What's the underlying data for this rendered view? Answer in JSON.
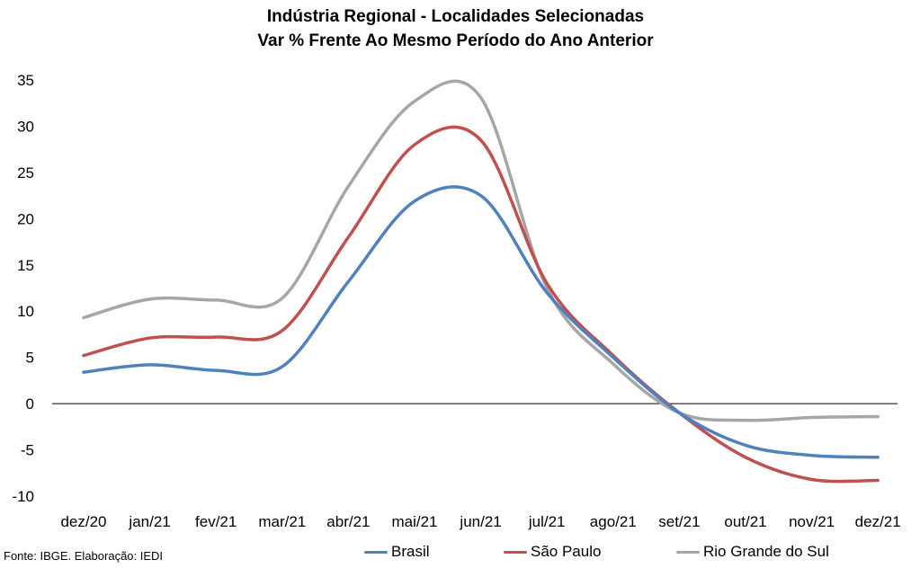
{
  "chart_data": {
    "type": "line",
    "title": "Indústria Regional - Localidades Selecionadas",
    "subtitle": "Var % Frente Ao Mesmo Período do Ano Anterior",
    "categories": [
      "dez/20",
      "jan/21",
      "fev/21",
      "mar/21",
      "abr/21",
      "mai/21",
      "jun/21",
      "jul/21",
      "ago/21",
      "set/21",
      "out/21",
      "nov/21",
      "dez/21"
    ],
    "ylim": [
      -10,
      35
    ],
    "yticks": [
      "35",
      "30",
      "25",
      "20",
      "15",
      "10",
      "5",
      "0",
      "-5",
      "-10"
    ],
    "grid": false,
    "legend_position": "bottom",
    "series": [
      {
        "name": "Brasil",
        "color": "#4f81bd",
        "values": [
          3.4,
          4.2,
          3.6,
          4.0,
          13.2,
          21.9,
          22.5,
          12.0,
          5.0,
          -1.0,
          -4.5,
          -5.6,
          -5.8
        ]
      },
      {
        "name": "São Paulo",
        "color": "#c0504d",
        "values": [
          5.2,
          7.1,
          7.2,
          7.9,
          18.0,
          28.0,
          28.5,
          13.0,
          5.2,
          -1.0,
          -5.8,
          -8.2,
          -8.3
        ]
      },
      {
        "name": "Rio Grande do Sul",
        "color": "#a6a6a6",
        "values": [
          9.3,
          11.3,
          11.2,
          11.4,
          23.5,
          32.7,
          33.1,
          12.5,
          4.3,
          -1.0,
          -1.8,
          -1.5,
          -1.4
        ]
      }
    ]
  },
  "footer": {
    "source": "Fonte: IBGE. Elaboração: IEDI"
  }
}
